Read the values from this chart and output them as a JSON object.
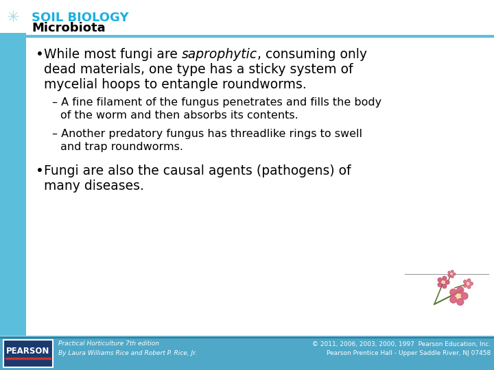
{
  "title_top": "SOIL BIOLOGY",
  "title_sub": "Microbiota",
  "title_color": "#1ab0e0",
  "sidebar_color": "#5bbfdc",
  "divider_color": "#5bbfdc",
  "bg_color": "#ffffff",
  "footer_bg": "#4fa8c8",
  "text_color": "#000000",
  "snowflake_color": "#a8d8e8",
  "footer_left1": "Practical Horticulture 7th edition",
  "footer_left2": "By Laura Williams Rice and Robert P. Rice, Jr.",
  "footer_right1": "© 2011, 2006, 2003, 2000, 1997  Pearson Education, Inc.",
  "footer_right2": "Pearson Prentice Hall - Upper Saddle River, NJ 07458",
  "pearson_text": "PEARSON"
}
